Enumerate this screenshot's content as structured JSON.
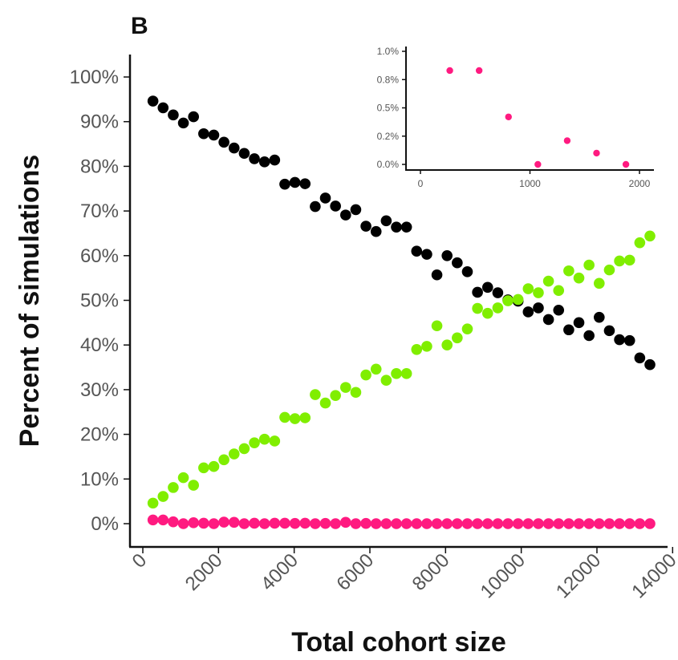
{
  "panel_label": "B",
  "colors": {
    "black_series": "#000000",
    "green_series": "#80ee00",
    "pink_series": "#ff1a80",
    "axis": "#111111",
    "tick_text": "#555555"
  },
  "chart_data": [
    {
      "type": "scatter",
      "title": "",
      "xlabel": "Total cohort size",
      "ylabel": "Percent of simulations",
      "xlim": [
        0,
        14000
      ],
      "ylim": [
        0,
        100
      ],
      "x_ticks": [
        0,
        2000,
        4000,
        6000,
        8000,
        10000,
        12000,
        14000
      ],
      "x_tick_labels": [
        "0",
        "2000",
        "4000",
        "6000",
        "8000",
        "10000",
        "12000",
        "14000"
      ],
      "y_ticks": [
        0,
        10,
        20,
        30,
        40,
        50,
        60,
        70,
        80,
        90,
        100
      ],
      "y_tick_labels": [
        "0%",
        "10%",
        "20%",
        "30%",
        "40%",
        "50%",
        "60%",
        "70%",
        "80%",
        "90%",
        "100%"
      ],
      "grid": false,
      "legend": "none",
      "x": [
        268,
        536,
        804,
        1072,
        1340,
        1608,
        1876,
        2144,
        2412,
        2680,
        2948,
        3216,
        3484,
        3752,
        4020,
        4288,
        4556,
        4824,
        5092,
        5360,
        5628,
        5896,
        6164,
        6432,
        6700,
        6968,
        7236,
        7504,
        7772,
        8040,
        8308,
        8576,
        8844,
        9112,
        9380,
        9648,
        9916,
        10184,
        10452,
        10720,
        10988,
        11256,
        11524,
        11792,
        12060,
        12328,
        12596,
        12864,
        13132,
        13400
      ],
      "series": [
        {
          "color": "#000000",
          "values": [
            94.6,
            93.1,
            91.5,
            89.7,
            91.1,
            87.3,
            87.0,
            85.4,
            84.1,
            82.9,
            81.7,
            81.0,
            81.4,
            76.0,
            76.4,
            76.1,
            71.0,
            72.9,
            71.1,
            69.1,
            70.3,
            66.6,
            65.4,
            67.8,
            66.4,
            66.4,
            61.0,
            60.3,
            55.7,
            60.0,
            58.4,
            56.4,
            51.8,
            52.9,
            51.7,
            50.1,
            49.8,
            47.4,
            48.3,
            45.7,
            47.8,
            43.4,
            45.0,
            42.1,
            46.2,
            43.2,
            41.2,
            41.0,
            37.1,
            35.6
          ]
        },
        {
          "color": "#80ee00",
          "values": [
            4.6,
            6.1,
            8.1,
            10.3,
            8.6,
            12.5,
            12.8,
            14.3,
            15.6,
            16.8,
            18.1,
            18.9,
            18.5,
            23.8,
            23.5,
            23.7,
            28.9,
            27.0,
            28.7,
            30.5,
            29.4,
            33.3,
            34.6,
            32.1,
            33.6,
            33.6,
            39.0,
            39.7,
            44.3,
            40.0,
            41.6,
            43.6,
            48.2,
            47.1,
            48.3,
            49.9,
            50.2,
            52.6,
            51.7,
            54.3,
            52.2,
            56.6,
            55.0,
            57.9,
            53.8,
            56.8,
            58.8,
            59.0,
            62.9,
            64.4
          ]
        },
        {
          "color": "#ff1a80",
          "values": [
            0.83,
            0.83,
            0.42,
            0.0,
            0.21,
            0.1,
            0.0,
            0.35,
            0.3,
            0.0,
            0.1,
            0.0,
            0.1,
            0.1,
            0.05,
            0.1,
            0.0,
            0.05,
            0.0,
            0.3,
            0.0,
            0.05,
            0.0,
            0.0,
            0.0,
            0.0,
            0.0,
            0.0,
            0.0,
            0.0,
            0.0,
            0.0,
            0.0,
            0.0,
            0.0,
            0.0,
            0.0,
            0.0,
            0.0,
            0.0,
            0.0,
            0.0,
            0.0,
            0.0,
            0.0,
            0.0,
            0.0,
            0.0,
            0.0,
            0.0
          ]
        }
      ]
    },
    {
      "type": "scatter",
      "title": "",
      "xlabel": "",
      "ylabel": "",
      "xlim": [
        -100,
        2100
      ],
      "ylim": [
        -0.05,
        1.05
      ],
      "x_ticks": [
        0,
        1000,
        2000
      ],
      "x_tick_labels": [
        "0",
        "1000",
        "2000"
      ],
      "y_ticks": [
        0,
        0.25,
        0.5,
        0.75,
        1.0
      ],
      "y_tick_labels": [
        "0.0%",
        "0.2%",
        "0.5%",
        "0.8%",
        "1.0%"
      ],
      "grid": false,
      "legend": "none",
      "x": [
        268,
        536,
        804,
        1072,
        1340,
        1608,
        1876
      ],
      "series": [
        {
          "color": "#ff1a80",
          "values": [
            0.83,
            0.83,
            0.42,
            0.0,
            0.21,
            0.1,
            0.0
          ]
        }
      ]
    }
  ]
}
